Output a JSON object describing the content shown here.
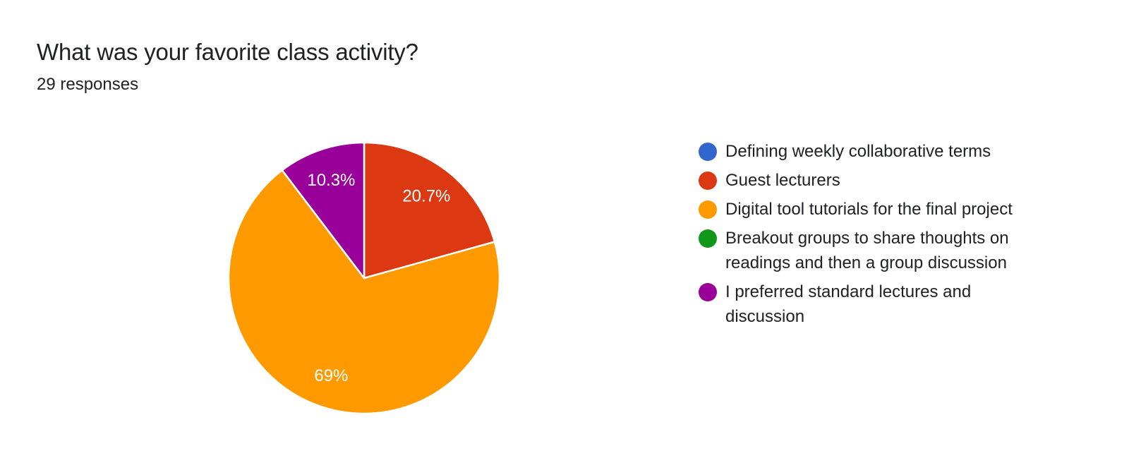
{
  "header": {
    "question": "What was your favorite class activity?",
    "response_count": "29 responses"
  },
  "colors": {
    "blue": "#3366cc",
    "red": "#dc3912",
    "orange": "#ff9900",
    "green": "#109618",
    "purple": "#990099"
  },
  "chart_data": {
    "type": "pie",
    "title": "What was your favorite class activity?",
    "subtitle": "29 responses",
    "total": 29,
    "legend_position": "right",
    "start_angle_deg": 90,
    "direction": "clockwise",
    "slices": [
      {
        "label": "Defining weekly collaborative terms",
        "count": 0,
        "percent": 0,
        "percent_label": "",
        "color": "#3366cc"
      },
      {
        "label": "Guest lecturers",
        "count": 6,
        "percent": 20.7,
        "percent_label": "20.7%",
        "color": "#dc3912"
      },
      {
        "label": "Digital tool tutorials for the final project",
        "count": 20,
        "percent": 69.0,
        "percent_label": "69%",
        "color": "#ff9900"
      },
      {
        "label": "Breakout groups to share thoughts on readings and then a group discussion",
        "count": 0,
        "percent": 0,
        "percent_label": "",
        "color": "#109618"
      },
      {
        "label": "I preferred standard lectures and discussion",
        "count": 3,
        "percent": 10.3,
        "percent_label": "10.3%",
        "color": "#990099"
      }
    ]
  }
}
